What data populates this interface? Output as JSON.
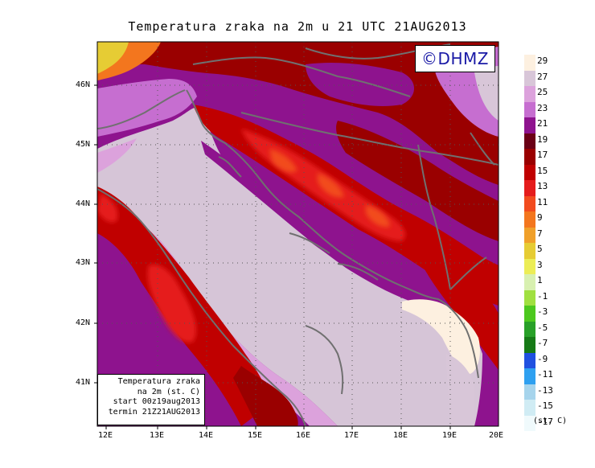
{
  "title": "Temperatura zraka na 2m u 21 UTC 21AUG2013",
  "logo_text": "©DHMZ",
  "info_box": {
    "line1": "Temperatura zraka",
    "line2": "na 2m (st. C)",
    "line3": "start 00z19aug2013",
    "line4": "termin 21Z21AUG2013"
  },
  "lat_labels": [
    "46N",
    "45N",
    "44N",
    "43N",
    "42N",
    "41N"
  ],
  "lon_labels": [
    "12E",
    "13E",
    "14E",
    "15E",
    "16E",
    "17E",
    "18E",
    "19E",
    "20E"
  ],
  "legend": {
    "unit": "(st. C)",
    "ticks": [
      "29",
      "27",
      "25",
      "23",
      "21",
      "19",
      "17",
      "15",
      "13",
      "11",
      "9",
      "7",
      "5",
      "3",
      "1",
      "-1",
      "-3",
      "-5",
      "-7",
      "-9",
      "-11",
      "-13",
      "-15",
      "-17"
    ],
    "colors": [
      "#fdf0e0",
      "#d8c6d8",
      "#dca2dc",
      "#c66ed0",
      "#8e138e",
      "#6b0016",
      "#9a0000",
      "#c00000",
      "#e51c1c",
      "#f24b1e",
      "#f3761e",
      "#f0a02a",
      "#e6cc34",
      "#eced56",
      "#d8f0b0",
      "#a0e040",
      "#4cc81e",
      "#28a028",
      "#167a16",
      "#2050e0",
      "#2ea0f0",
      "#a6d4ec",
      "#d0ecf4",
      "#f0fafc"
    ]
  },
  "map": {
    "ocean_color": "#d6c5d7",
    "coast_color": "#707070"
  }
}
